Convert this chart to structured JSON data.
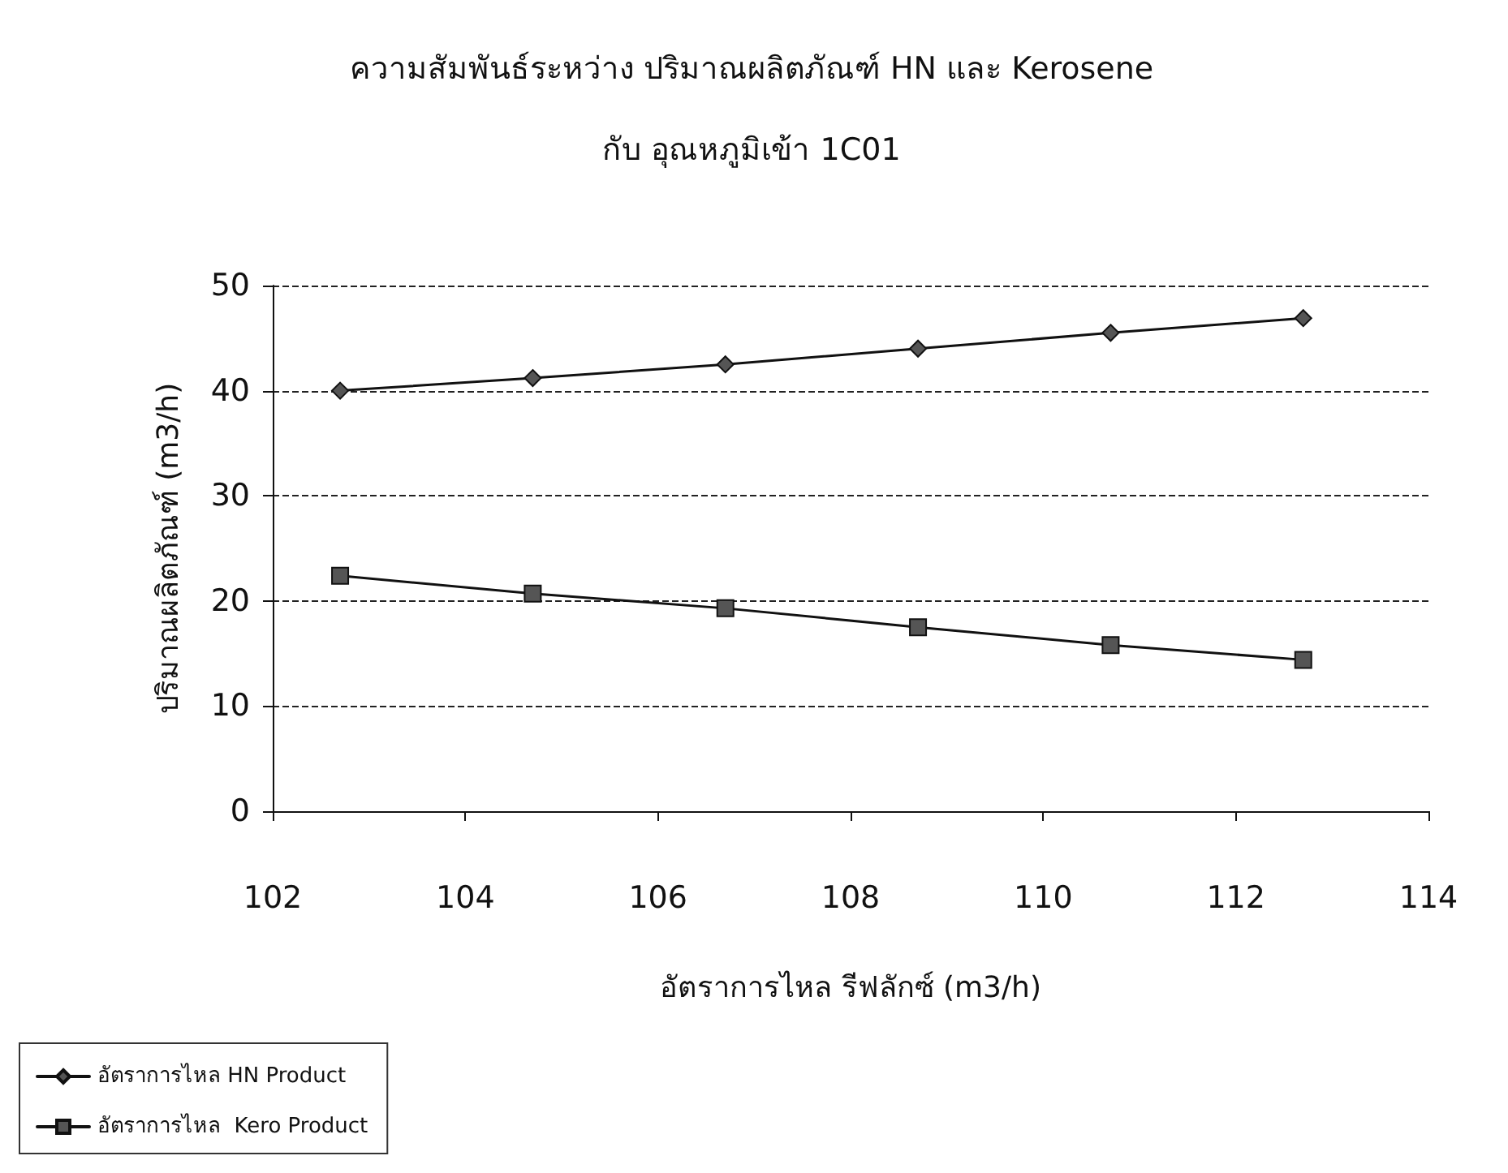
{
  "chart_data": {
    "type": "line",
    "title": "ความสัมพันธ์ระหว่าง ปริมาณผลิตภัณฑ์ HN และ Kerosene",
    "subtitle": "กับ อุณหภูมิเข้า 1C01",
    "xlabel": "อัตราการไหล รีฟลักซ์ (m3/h)",
    "ylabel": "ปริมาณผลิตภัณฑ์ (m3/h)",
    "x": [
      102.7,
      104.7,
      106.7,
      108.7,
      110.7,
      112.7
    ],
    "series": [
      {
        "name": "อัตราการไหล HN Product",
        "color": "#555555",
        "marker": "diamond",
        "values": [
          40.0,
          41.2,
          42.5,
          44.0,
          45.5,
          46.9
        ]
      },
      {
        "name": "อัตราการไหล  Kero Product",
        "color": "#555555",
        "marker": "square",
        "values": [
          22.4,
          20.7,
          19.3,
          17.5,
          15.8,
          14.4
        ]
      }
    ],
    "xlim": [
      102,
      114
    ],
    "xticks": [
      102,
      104,
      106,
      108,
      110,
      112,
      114
    ],
    "ylim": [
      0,
      50
    ],
    "yticks": [
      0,
      10,
      20,
      30,
      40,
      50
    ],
    "grid": "y",
    "line_style": "solid",
    "legend": "bottom left"
  }
}
